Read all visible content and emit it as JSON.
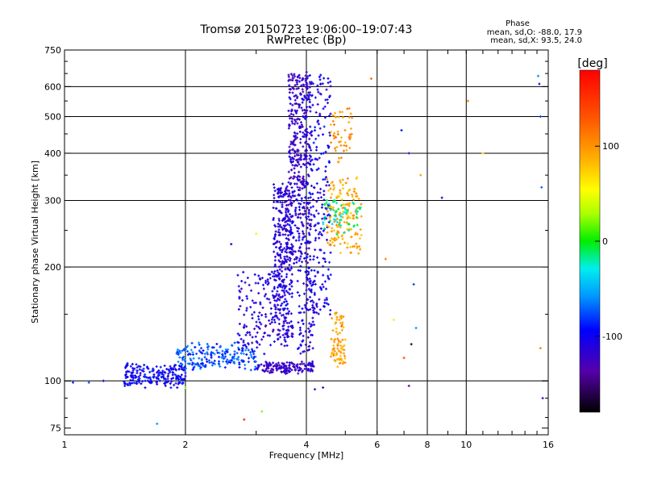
{
  "chart_data": {
    "type": "scatter",
    "title_line1": "Tromsø 20150723 19:06:00–19:07:43",
    "title_line2": "RwPretec (Bp)",
    "stats": {
      "heading": "Phase",
      "line_o": "mean, sd,O: -88.0, 17.9",
      "line_x": "mean, sd,X:  93.5, 24.0"
    },
    "xlabel": "Frequency [MHz]",
    "ylabel": "Stationary phase Virtual Height [km]",
    "x_scale": "log",
    "y_scale": "log",
    "xlim": [
      1,
      16
    ],
    "ylim": [
      72,
      750
    ],
    "x_ticks": [
      {
        "v": 1,
        "label": "1"
      },
      {
        "v": 2,
        "label": "2"
      },
      {
        "v": 4,
        "label": "4"
      },
      {
        "v": 6,
        "label": "6"
      },
      {
        "v": 8,
        "label": "8"
      },
      {
        "v": 10,
        "label": "10"
      },
      {
        "v": 16,
        "label": "16"
      }
    ],
    "x_grid": [
      2,
      4,
      6,
      8,
      10
    ],
    "y_ticks": [
      {
        "v": 75,
        "label": "75"
      },
      {
        "v": 100,
        "label": "100"
      },
      {
        "v": 200,
        "label": "200"
      },
      {
        "v": 300,
        "label": "300"
      },
      {
        "v": 400,
        "label": "400"
      },
      {
        "v": 500,
        "label": "500"
      },
      {
        "v": 600,
        "label": "600"
      },
      {
        "v": 750,
        "label": "750"
      }
    ],
    "y_grid": [
      100,
      200,
      300,
      400,
      500,
      600
    ],
    "grid": true,
    "colorbar": {
      "unit_label": "[deg]",
      "min": -180,
      "max": 180,
      "ticks": [
        {
          "v": 100,
          "label": "100"
        },
        {
          "v": 0,
          "label": "0"
        },
        {
          "v": -100,
          "label": "-100"
        }
      ]
    },
    "trace_clusters": [
      {
        "x": [
          1.4,
          2.0
        ],
        "y": [
          97,
          110
        ],
        "phase": -100,
        "n": 220,
        "spread": 0.03
      },
      {
        "x": [
          1.9,
          3.0
        ],
        "y": [
          108,
          125
        ],
        "phase": -75,
        "n": 200,
        "spread": 0.04
      },
      {
        "x": [
          3.0,
          4.2
        ],
        "y": [
          105,
          112
        ],
        "phase": -120,
        "n": 150,
        "spread": 0.015
      },
      {
        "x": [
          2.7,
          3.6
        ],
        "y": [
          120,
          190
        ],
        "phase": -115,
        "n": 160,
        "spread": 0.06
      },
      {
        "x": [
          3.3,
          3.7
        ],
        "y": [
          130,
          330
        ],
        "phase": -110,
        "n": 260,
        "spread": 0.04
      },
      {
        "x": [
          3.4,
          4.1
        ],
        "y": [
          200,
          330
        ],
        "phase": -115,
        "n": 230,
        "spread": 0.05
      },
      {
        "x": [
          3.6,
          4.1
        ],
        "y": [
          330,
          650
        ],
        "phase": -120,
        "n": 280,
        "spread": 0.03
      },
      {
        "x": [
          4.0,
          4.6
        ],
        "y": [
          150,
          640
        ],
        "phase": -105,
        "n": 240,
        "spread": 0.04
      },
      {
        "x": [
          3.8,
          4.2
        ],
        "y": [
          120,
          200
        ],
        "phase": -110,
        "n": 90,
        "spread": 0.05
      },
      {
        "x": [
          4.5,
          5.5
        ],
        "y": [
          220,
          340
        ],
        "phase": 90,
        "n": 150,
        "spread": 0.05
      },
      {
        "x": [
          4.6,
          5.0
        ],
        "y": [
          110,
          150
        ],
        "phase": 95,
        "n": 80,
        "spread": 0.04
      },
      {
        "x": [
          4.4,
          5.5
        ],
        "y": [
          250,
          300
        ],
        "phase": -20,
        "n": 60,
        "spread": 0.05
      },
      {
        "x": [
          4.6,
          5.2
        ],
        "y": [
          380,
          520
        ],
        "phase": 100,
        "n": 50,
        "spread": 0.05
      }
    ],
    "scattered_points": [
      {
        "x": 7.7,
        "y": 350,
        "phase": 95
      },
      {
        "x": 8.7,
        "y": 305,
        "phase": -110
      },
      {
        "x": 10.1,
        "y": 550,
        "phase": 110
      },
      {
        "x": 11.0,
        "y": 400,
        "phase": 70
      },
      {
        "x": 15.1,
        "y": 640,
        "phase": -60
      },
      {
        "x": 15.2,
        "y": 610,
        "phase": -100
      },
      {
        "x": 15.3,
        "y": 500,
        "phase": -80
      },
      {
        "x": 15.4,
        "y": 325,
        "phase": -70
      },
      {
        "x": 15.3,
        "y": 122,
        "phase": 110
      },
      {
        "x": 15.5,
        "y": 90,
        "phase": -130
      },
      {
        "x": 6.9,
        "y": 460,
        "phase": -90
      },
      {
        "x": 7.2,
        "y": 400,
        "phase": -100
      },
      {
        "x": 7.4,
        "y": 180,
        "phase": -80
      },
      {
        "x": 7.5,
        "y": 138,
        "phase": -60
      },
      {
        "x": 7.0,
        "y": 115,
        "phase": 140
      },
      {
        "x": 7.3,
        "y": 125,
        "phase": -170
      },
      {
        "x": 7.2,
        "y": 97,
        "phase": -140
      },
      {
        "x": 6.3,
        "y": 210,
        "phase": 110
      },
      {
        "x": 2.6,
        "y": 230,
        "phase": -100
      },
      {
        "x": 3.0,
        "y": 245,
        "phase": 60
      },
      {
        "x": 2.8,
        "y": 79,
        "phase": 160
      },
      {
        "x": 3.1,
        "y": 83,
        "phase": 20
      },
      {
        "x": 1.7,
        "y": 77,
        "phase": -60
      },
      {
        "x": 1.05,
        "y": 99,
        "phase": -90
      },
      {
        "x": 1.15,
        "y": 99,
        "phase": -80
      },
      {
        "x": 1.25,
        "y": 100,
        "phase": -100
      },
      {
        "x": 2.0,
        "y": 96,
        "phase": 20
      },
      {
        "x": 4.4,
        "y": 96,
        "phase": -110
      },
      {
        "x": 4.2,
        "y": 95,
        "phase": -120
      },
      {
        "x": 5.8,
        "y": 630,
        "phase": 120
      },
      {
        "x": 6.6,
        "y": 145,
        "phase": 60
      }
    ]
  }
}
